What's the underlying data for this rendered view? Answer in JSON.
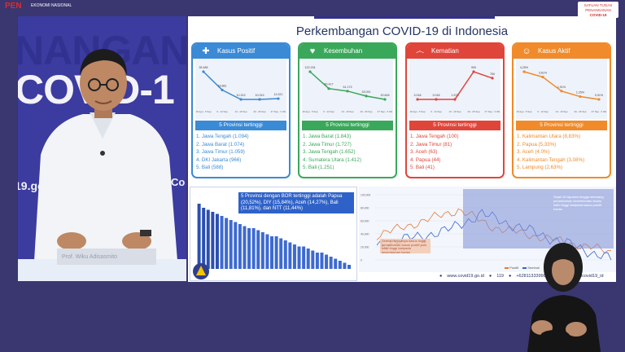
{
  "header": {
    "pen_logo": "PEN",
    "pen_subtitle": "EKONOMI NASIONAL",
    "badge_line1": "SATUAN TUGAS",
    "badge_line2": "PENANGANAN",
    "badge_line3": "COVID-19"
  },
  "speaker": {
    "backdrop_line1": "NANGAN",
    "backdrop_line2": "COVID-1",
    "backdrop_url": "19.go",
    "backdrop_co": "Co",
    "nameplate": "Prof. Wiku Adisasmito"
  },
  "slide": {
    "title": "Perkembangan COVID-19 di Indonesia",
    "list_header": "5 Provinsi tertinggi",
    "cards": [
      {
        "title": "Kasus Positif",
        "color": "#3a8ad6",
        "icon": "plus-icon",
        "provinces": [
          "1. Jawa Tengah (1.094)",
          "2. Jawa Barat (1.074)",
          "3. Jawa Timur (1.059)",
          "4. DKI Jakarta (966)",
          "5. Bali (588)"
        ],
        "values": [
          35.485,
          18.881,
          10.313,
          10.319,
          11.021
        ],
        "labels": [
          "35.485",
          "18.881",
          "10.313",
          "10.319",
          "11.021"
        ],
        "weeks": [
          "16 Agu - 5 Sep",
          "6 - 12 Sep",
          "13 - 19 Sep",
          "20 - 26 Sep",
          "27 Sep - 3 Okt"
        ]
      },
      {
        "title": "Kesembuhan",
        "color": "#3aa85a",
        "icon": "heart-icon",
        "provinces": [
          "1. Jawa Barat (1.843)",
          "2. Jawa Timur (1.727)",
          "3. Jawa Tengah (1.652)",
          "4. Sumatera Utara (1.412)",
          "5. Bali (1.251)"
        ],
        "values": [
          122.234,
          60.417,
          51.173,
          33.091,
          20.818
        ],
        "labels": [
          "122.234",
          "60.417",
          "51.173",
          "33.091",
          "20.818"
        ],
        "weeks": [
          "16 Agu - 5 Sep",
          "6 - 12 Sep",
          "13 - 19 Sep",
          "20 - 26 Sep",
          "27 Sep - 3 Okt"
        ]
      },
      {
        "title": "Kematian",
        "color": "#e0453a",
        "icon": "ribbon-icon",
        "provinces": [
          "1. Jawa Tengah (100)",
          "2. Jawa Timur (81)",
          "3. Aceh (63)",
          "4. Papua (44)",
          "5. Bali (41)"
        ],
        "values": [
          3.018,
          3.018,
          1.573,
          990,
          760
        ],
        "labels": [
          "3.018",
          "3.018",
          "1.573",
          "990",
          "760"
        ],
        "weeks": [
          "16 Agu - 5 Sep",
          "6 - 12 Sep",
          "13 - 19 Sep",
          "20 - 26 Sep",
          "27 Sep - 3 Okt"
        ]
      },
      {
        "title": "Kasus Aktif",
        "color": "#f08a2a",
        "icon": "people-icon",
        "provinces": [
          "1. Kalimantan Utara (8,83%)",
          "2. Papua (5,33%)",
          "3. Aceh (4,0%)",
          "4. Kalimantan Tengah (3,08%)",
          "5. Lampung (2,63%)"
        ],
        "values": [
          4.25,
          3.61,
          1.91,
          1.25,
          0.91
        ],
        "labels": [
          "4,25%",
          "3,61%",
          "1,91%",
          "1,25%",
          "0,91%"
        ],
        "weeks": [
          "16 Agu - 5 Sep",
          "6 - 12 Sep",
          "13 - 19 Sep",
          "20 - 26 Sep",
          "27 Sep - 3 Okt"
        ]
      }
    ],
    "bor_note": "5 Provinsi dengan BOR tertinggi adalah Papua (20,52%), DIY (15,84%), Aceh (14,27%), Bali (11,81%), dan NTT (11,44%)",
    "bor_values": [
      32,
      30,
      29,
      28,
      27,
      26,
      25,
      24,
      23,
      22,
      21,
      20,
      20,
      19,
      18,
      17,
      16,
      16,
      15,
      14,
      13,
      12,
      11,
      11,
      10,
      9,
      8,
      8,
      7,
      6,
      5,
      4,
      3,
      2
    ],
    "annotation_left": "Setelah terjadinya kasus tinggi, penambahan kasus positif jauh lebih tinggi daripada kesembuhan harian",
    "annotation_right": "Sejak 26 Agustus hingga sekarang penambahan kesembuhan selalu lebih tinggi daripada kasus positif harian",
    "y_ticks": [
      "100,000",
      "80,000",
      "60,000",
      "40,000",
      "20,000",
      "0"
    ],
    "legend_positif": "Positif",
    "legend_sembuh": "Sembuh",
    "footer_web": "www.covid19.go.id",
    "footer_phone": "119",
    "footer_wa": "+6281133399000",
    "footer_handle": "satgasanwcovid19_id"
  }
}
